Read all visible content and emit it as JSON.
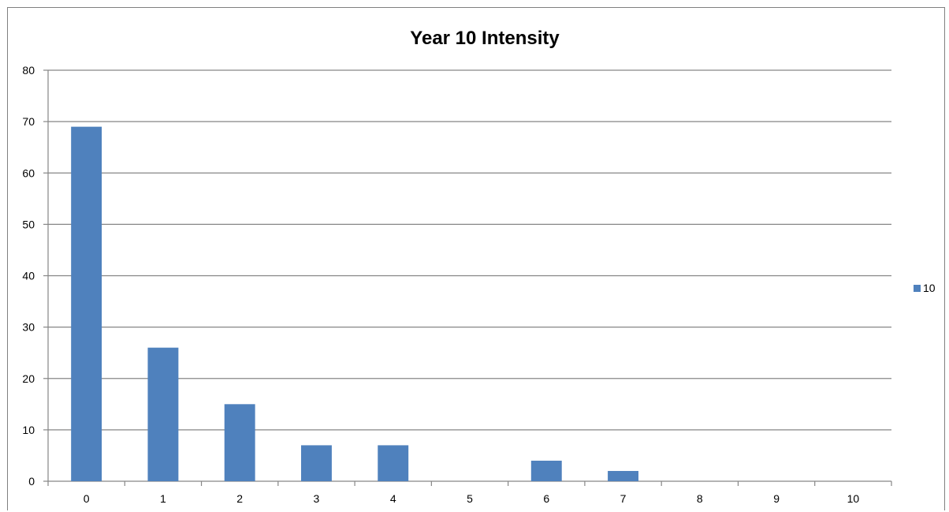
{
  "chart_data": {
    "type": "bar",
    "title": "Year 10 Intensity",
    "xlabel": "",
    "ylabel": "",
    "categories": [
      "0",
      "1",
      "2",
      "3",
      "4",
      "5",
      "6",
      "7",
      "8",
      "9",
      "10"
    ],
    "series": [
      {
        "name": "10",
        "values": [
          69,
          26,
          15,
          7,
          7,
          0,
          4,
          2,
          0,
          0,
          0
        ],
        "color": "#4f81bd"
      }
    ],
    "ylim": [
      0,
      80
    ],
    "yticks": [
      "0",
      "10",
      "20",
      "30",
      "40",
      "50",
      "60",
      "70",
      "80"
    ],
    "grid": true,
    "legend_position": "right"
  }
}
